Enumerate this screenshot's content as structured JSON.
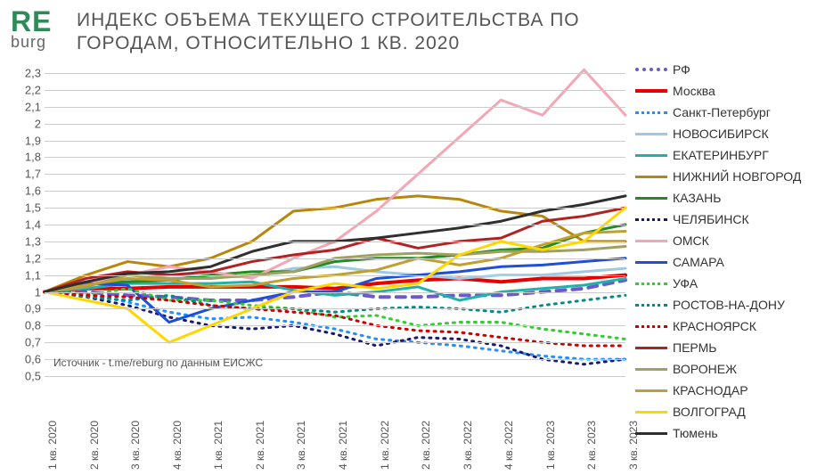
{
  "logo": {
    "top": "RE",
    "bottom": "burg",
    "top_color": "#2e8b57",
    "bottom_color": "#666"
  },
  "title": "ИНДЕКС ОБЪЕМА ТЕКУЩЕГО СТРОИТЕЛЬСТВА ПО ГОРОДАМ, ОТНОСИТЕЛЬНО 1 КВ. 2020",
  "source": "Источник - t.me/reburg по данным ЕИСЖС",
  "chart": {
    "type": "line",
    "ylim": [
      0.5,
      2.3
    ],
    "ytick_step": 0.1,
    "background_color": "#ffffff",
    "grid_color": "#cccccc",
    "title_fontsize": 21,
    "label_fontsize": 13,
    "legend_fontsize": 14,
    "x_labels": [
      "1 кв. 2020",
      "2 кв. 2020",
      "3 кв. 2020",
      "4 кв. 2020",
      "1 кв. 2021",
      "2 кв. 2021",
      "3 кв. 2021",
      "4 кв. 2021",
      "1 кв. 2022",
      "2 кв. 2022",
      "3 кв. 2022",
      "4 кв. 2022",
      "1 кв. 2023",
      "2 кв. 2023",
      "3 кв. 2023"
    ],
    "series": [
      {
        "name": "РФ",
        "color": "#6a5acd",
        "width": 4,
        "dash": "10,8",
        "values": [
          1.0,
          1.0,
          0.98,
          0.97,
          0.95,
          0.95,
          0.97,
          1.0,
          0.97,
          0.97,
          0.98,
          0.98,
          1.0,
          1.02,
          1.07
        ]
      },
      {
        "name": "Москва",
        "color": "#e60000",
        "width": 4,
        "dash": "",
        "values": [
          1.0,
          1.02,
          1.02,
          1.03,
          1.03,
          1.03,
          1.03,
          1.02,
          1.05,
          1.07,
          1.08,
          1.06,
          1.08,
          1.08,
          1.1
        ]
      },
      {
        "name": "Санкт-Петербург",
        "color": "#1e90ff",
        "width": 3,
        "dash": "2,6",
        "values": [
          1.0,
          0.99,
          0.94,
          0.88,
          0.84,
          0.85,
          0.82,
          0.78,
          0.72,
          0.7,
          0.68,
          0.65,
          0.62,
          0.6,
          0.6
        ]
      },
      {
        "name": "НОВОСИБИРСК",
        "color": "#9ec9e2",
        "width": 3,
        "dash": "",
        "values": [
          1.0,
          1.05,
          1.07,
          1.1,
          1.09,
          1.09,
          1.14,
          1.15,
          1.12,
          1.1,
          1.08,
          1.1,
          1.1,
          1.12,
          1.14
        ]
      },
      {
        "name": "ЕКАТЕРИНБУРГ",
        "color": "#20b2aa",
        "width": 3,
        "dash": "",
        "values": [
          1.0,
          1.02,
          1.05,
          1.05,
          1.05,
          1.06,
          1.01,
          0.98,
          1.0,
          1.03,
          0.95,
          1.0,
          1.02,
          1.04,
          1.08
        ]
      },
      {
        "name": "НИЖНИЙ НОВГОРОД",
        "color": "#b8860b",
        "width": 3,
        "dash": "",
        "values": [
          1.0,
          1.1,
          1.18,
          1.15,
          1.2,
          1.3,
          1.48,
          1.5,
          1.55,
          1.57,
          1.55,
          1.48,
          1.45,
          1.3,
          1.3
        ]
      },
      {
        "name": "КАЗАНЬ",
        "color": "#228b22",
        "width": 3,
        "dash": "",
        "values": [
          1.0,
          1.05,
          1.06,
          1.07,
          1.1,
          1.12,
          1.12,
          1.18,
          1.2,
          1.2,
          1.22,
          1.25,
          1.26,
          1.35,
          1.4
        ]
      },
      {
        "name": "ЧЕЛЯБИНСК",
        "color": "#191970",
        "width": 3,
        "dash": "2,6",
        "values": [
          1.0,
          0.97,
          0.92,
          0.85,
          0.8,
          0.78,
          0.8,
          0.75,
          0.68,
          0.73,
          0.72,
          0.68,
          0.6,
          0.57,
          0.6
        ]
      },
      {
        "name": "ОМСК",
        "color": "#f4a6b4",
        "width": 3,
        "dash": "",
        "values": [
          1.0,
          1.05,
          1.1,
          1.15,
          1.12,
          1.08,
          1.2,
          1.3,
          1.48,
          1.7,
          1.92,
          2.14,
          2.05,
          2.32,
          2.05
        ]
      },
      {
        "name": "САМАРА",
        "color": "#1e4fd8",
        "width": 3,
        "dash": "",
        "values": [
          1.0,
          1.05,
          1.04,
          0.82,
          0.9,
          0.95,
          1.0,
          1.0,
          1.08,
          1.1,
          1.12,
          1.15,
          1.16,
          1.18,
          1.2
        ]
      },
      {
        "name": "УФА",
        "color": "#32cd32",
        "width": 3,
        "dash": "2,6",
        "values": [
          1.0,
          0.98,
          1.02,
          0.95,
          0.95,
          0.92,
          0.9,
          0.85,
          0.86,
          0.8,
          0.82,
          0.82,
          0.78,
          0.75,
          0.72
        ]
      },
      {
        "name": "РОСТОВ-НА-ДОНУ",
        "color": "#008b8b",
        "width": 3,
        "dash": "2,6",
        "values": [
          1.0,
          0.97,
          0.95,
          0.98,
          0.92,
          0.9,
          0.9,
          0.88,
          0.9,
          0.91,
          0.9,
          0.88,
          0.92,
          0.95,
          0.98
        ]
      },
      {
        "name": "КРАСНОЯРСК",
        "color": "#cc0000",
        "width": 3,
        "dash": "2,6",
        "values": [
          1.0,
          0.98,
          0.97,
          0.95,
          0.92,
          0.9,
          0.88,
          0.86,
          0.8,
          0.77,
          0.76,
          0.73,
          0.7,
          0.68,
          0.68
        ]
      },
      {
        "name": "ПЕРМЬ",
        "color": "#b22222",
        "width": 3,
        "dash": "",
        "values": [
          1.0,
          1.08,
          1.12,
          1.1,
          1.12,
          1.18,
          1.22,
          1.25,
          1.32,
          1.26,
          1.3,
          1.32,
          1.42,
          1.45,
          1.5
        ]
      },
      {
        "name": "ВОРОНЕЖ",
        "color": "#a0a060",
        "width": 3,
        "dash": "",
        "values": [
          1.0,
          1.03,
          1.1,
          1.08,
          1.08,
          1.1,
          1.12,
          1.2,
          1.22,
          1.23,
          1.22,
          1.24,
          1.24,
          1.25,
          1.27
        ]
      },
      {
        "name": "КРАСНОДАР",
        "color": "#bfa030",
        "width": 3,
        "dash": "",
        "values": [
          1.0,
          1.04,
          1.08,
          1.07,
          1.03,
          1.04,
          1.08,
          1.1,
          1.13,
          1.2,
          1.16,
          1.2,
          1.28,
          1.35,
          1.36
        ]
      },
      {
        "name": "ВОЛГОГРАД",
        "color": "#ffd700",
        "width": 3,
        "dash": "",
        "values": [
          1.0,
          0.95,
          0.9,
          0.7,
          0.8,
          0.9,
          1.0,
          1.05,
          1.02,
          1.05,
          1.22,
          1.3,
          1.25,
          1.3,
          1.5
        ]
      },
      {
        "name": "Тюмень",
        "color": "#2f2f2f",
        "width": 3,
        "dash": "",
        "values": [
          1.0,
          1.06,
          1.11,
          1.12,
          1.15,
          1.24,
          1.3,
          1.3,
          1.32,
          1.35,
          1.38,
          1.42,
          1.48,
          1.52,
          1.57
        ]
      }
    ]
  }
}
